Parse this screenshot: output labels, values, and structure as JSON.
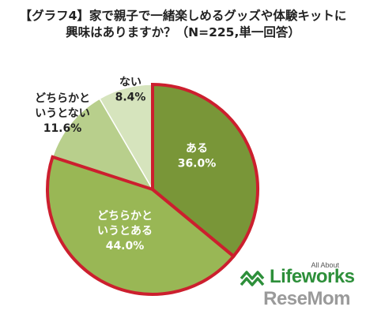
{
  "title": {
    "line1": "【グラフ4】家で親子で一緒楽しめるグッズや体験キットに",
    "line2": "興味はありますか？（N=225,単一回答）"
  },
  "chart_data": {
    "type": "pie",
    "title": "【グラフ4】家で親子で一緒楽しめるグッズや体験キットに 興味はありますか？（N=225,単一回答）",
    "slices": [
      {
        "label": [
          "ある"
        ],
        "value": 36.0,
        "value_text": "36.0%",
        "color": "#799638",
        "text_color": "#ffffff"
      },
      {
        "label": [
          "どちらかと",
          "いうとある"
        ],
        "value": 44.0,
        "value_text": "44.0%",
        "color": "#99b755",
        "text_color": "#ffffff"
      },
      {
        "label": [
          "どちらかと",
          "いうとない"
        ],
        "value": 11.6,
        "value_text": "11.6%",
        "color": "#b8cf8c",
        "text_color": "#222222"
      },
      {
        "label": [
          "ない"
        ],
        "value": 8.4,
        "value_text": "8.4%",
        "color": "#d6e4bd",
        "text_color": "#222222"
      }
    ],
    "start": "12 o'clock",
    "direction": "clockwise",
    "highlight": {
      "slices": [
        "ある",
        "どちらかと いうとある"
      ],
      "outline_color": "#cc1f2e"
    }
  },
  "logo": {
    "tagline": "All About",
    "brand": "Lifeworks",
    "watermark": "ReseMom"
  }
}
